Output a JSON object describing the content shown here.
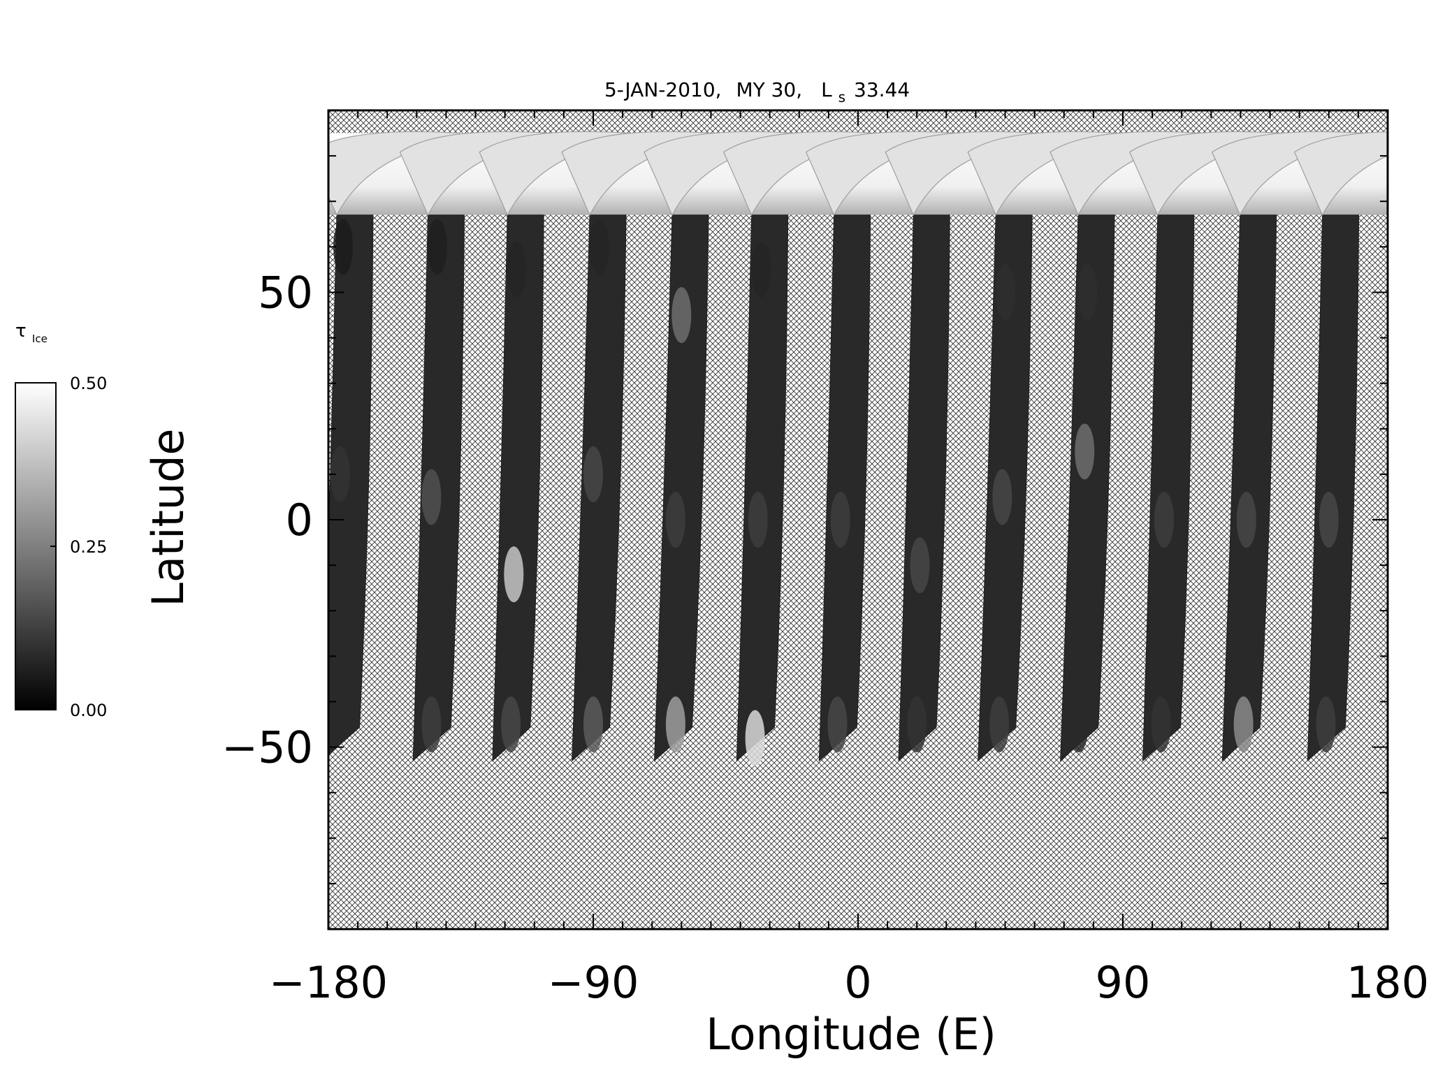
{
  "chart_data": {
    "type": "heatmap",
    "title": {
      "date": "5-JAN-2010,",
      "mars_year": "MY 30,",
      "ls_symbol": "L",
      "ls_subscript": "s",
      "ls_value": "33.44"
    },
    "xlabel": "Longitude (E)",
    "ylabel": "Latitude",
    "xlim": [
      -180,
      180
    ],
    "ylim": [
      -90,
      90
    ],
    "x_ticks": [
      -180,
      -90,
      0,
      90,
      180
    ],
    "x_tick_labels": [
      "−180",
      "−90",
      "0",
      "90",
      "180"
    ],
    "x_minor_tick_step": 10,
    "y_ticks": [
      -50,
      0,
      50
    ],
    "y_tick_labels": [
      "−50",
      "0",
      "50"
    ],
    "y_minor_tick_step": 10,
    "no_data_fill": "cross-hatch",
    "colorbar": {
      "symbol": "τ",
      "subscript": "Ice",
      "min": 0.0,
      "max": 0.5,
      "tick_values": [
        0.0,
        0.25,
        0.5
      ],
      "tick_labels": [
        "0.00",
        "0.25",
        "0.50"
      ],
      "color_min": "#000000",
      "color_max": "#ffffff"
    },
    "polar_cap_coverage": {
      "lat_min": 67,
      "lat_max": 85
    },
    "swaths": [
      {
        "top_lon": -171,
        "bottom_lon": -177,
        "lat_top": 67,
        "lat_bottom": -53
      },
      {
        "top_lon": -140,
        "bottom_lon": -146,
        "lat_top": 67,
        "lat_bottom": -53
      },
      {
        "top_lon": -113,
        "bottom_lon": -119,
        "lat_top": 67,
        "lat_bottom": -53
      },
      {
        "top_lon": -85,
        "bottom_lon": -92,
        "lat_top": 67,
        "lat_bottom": -53
      },
      {
        "top_lon": -57,
        "bottom_lon": -64,
        "lat_top": 67,
        "lat_bottom": -53
      },
      {
        "top_lon": -30,
        "bottom_lon": -36,
        "lat_top": 67,
        "lat_bottom": -53
      },
      {
        "top_lon": -2,
        "bottom_lon": -8,
        "lat_top": 67,
        "lat_bottom": -53
      },
      {
        "top_lon": 25,
        "bottom_lon": 19,
        "lat_top": 67,
        "lat_bottom": -53
      },
      {
        "top_lon": 53,
        "bottom_lon": 46,
        "lat_top": 67,
        "lat_bottom": -53
      },
      {
        "top_lon": 81,
        "bottom_lon": 74,
        "lat_top": 67,
        "lat_bottom": -53
      },
      {
        "top_lon": 108,
        "bottom_lon": 102,
        "lat_top": 67,
        "lat_bottom": -53
      },
      {
        "top_lon": 136,
        "bottom_lon": 129,
        "lat_top": 67,
        "lat_bottom": -53
      },
      {
        "top_lon": 164,
        "bottom_lon": 158,
        "lat_top": 67,
        "lat_bottom": -53
      }
    ],
    "ice_opacity_samples": [
      {
        "lon": -175,
        "lat": 60,
        "value": 0.03
      },
      {
        "lon": -176,
        "lat": 10,
        "value": 0.08
      },
      {
        "lon": -176,
        "lat": -40,
        "value": 0.06
      },
      {
        "lon": -143,
        "lat": 60,
        "value": 0.04
      },
      {
        "lon": -145,
        "lat": 5,
        "value": 0.14
      },
      {
        "lon": -145,
        "lat": -45,
        "value": 0.1
      },
      {
        "lon": -116,
        "lat": 55,
        "value": 0.05
      },
      {
        "lon": -117,
        "lat": -12,
        "value": 0.38
      },
      {
        "lon": -118,
        "lat": -45,
        "value": 0.12
      },
      {
        "lon": -88,
        "lat": 60,
        "value": 0.05
      },
      {
        "lon": -90,
        "lat": 10,
        "value": 0.12
      },
      {
        "lon": -90,
        "lat": -45,
        "value": 0.16
      },
      {
        "lon": -60,
        "lat": 45,
        "value": 0.2
      },
      {
        "lon": -62,
        "lat": 0,
        "value": 0.1
      },
      {
        "lon": -62,
        "lat": -45,
        "value": 0.3
      },
      {
        "lon": -33,
        "lat": 55,
        "value": 0.05
      },
      {
        "lon": -34,
        "lat": 0,
        "value": 0.1
      },
      {
        "lon": -35,
        "lat": -48,
        "value": 0.42
      },
      {
        "lon": -5,
        "lat": 55,
        "value": 0.06
      },
      {
        "lon": -6,
        "lat": 0,
        "value": 0.1
      },
      {
        "lon": -7,
        "lat": -45,
        "value": 0.12
      },
      {
        "lon": 22,
        "lat": 50,
        "value": 0.06
      },
      {
        "lon": 21,
        "lat": -10,
        "value": 0.12
      },
      {
        "lon": 20,
        "lat": -45,
        "value": 0.08
      },
      {
        "lon": 50,
        "lat": 50,
        "value": 0.07
      },
      {
        "lon": 49,
        "lat": 5,
        "value": 0.12
      },
      {
        "lon": 48,
        "lat": -45,
        "value": 0.1
      },
      {
        "lon": 78,
        "lat": 50,
        "value": 0.07
      },
      {
        "lon": 77,
        "lat": 15,
        "value": 0.2
      },
      {
        "lon": 75,
        "lat": -45,
        "value": 0.06
      },
      {
        "lon": 105,
        "lat": 55,
        "value": 0.06
      },
      {
        "lon": 104,
        "lat": 0,
        "value": 0.1
      },
      {
        "lon": 103,
        "lat": -45,
        "value": 0.08
      },
      {
        "lon": 133,
        "lat": 55,
        "value": 0.06
      },
      {
        "lon": 132,
        "lat": 0,
        "value": 0.12
      },
      {
        "lon": 131,
        "lat": -45,
        "value": 0.26
      },
      {
        "lon": 161,
        "lat": 55,
        "value": 0.06
      },
      {
        "lon": 160,
        "lat": 0,
        "value": 0.12
      },
      {
        "lon": 159,
        "lat": -45,
        "value": 0.1
      }
    ]
  }
}
